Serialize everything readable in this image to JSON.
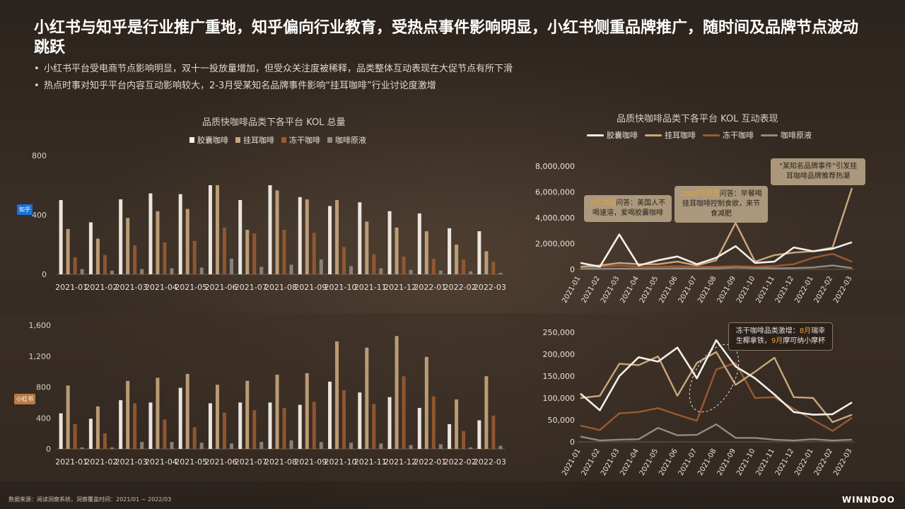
{
  "title": "小红书与知乎是行业推广重地，知乎偏向行业教育，受热点事件影响明显，小红书侧重品牌推广，随时间及品牌节点波动跳跃",
  "bullets": [
    "小红书平台受电商节点影响明显，双十一投放量增加，但受众关注度被稀释，品类整体互动表现在大促节点有所下滑",
    "热点时事对知乎平台内容互动影响较大，2-3月受某知名品牌事件影响“挂耳咖啡”行业讨论度激增"
  ],
  "bar_title": "品质快咖啡品类下各平台 KOL 总量",
  "line_title": "品质快咖啡品类下各平台 KOL 互动表现",
  "legend": [
    "胶囊咖啡",
    "挂耳咖啡",
    "冻干咖啡",
    "咖啡原液"
  ],
  "platforms": {
    "zhihu": "知乎",
    "xhs": "小红书"
  },
  "callouts": {
    "c1": "2亿浏览问答：美国人不喝速溶，爱喝胶囊咖啡",
    "c1_hl": "2亿浏览",
    "c2_hl": "2600万浏览",
    "c2_rest": "问答：早餐喝挂耳咖啡控制食欲，来节食减肥",
    "c3": "“某知名品牌事件”引发挂耳咖啡品牌推荐热潮",
    "c4_a": "冻干咖啡品类激增：",
    "c4_b": "8月",
    "c4_c": "瑞幸生椰拿铁，",
    "c4_d": "9月",
    "c4_e": "摩可纳小摩杯"
  },
  "footer": "数据来源：阅读洞察系统，洞察覆盖时间：2021/01 ~ 2022/03",
  "logo": "WINNDOO",
  "colors": {
    "capsule": "#f4efe8",
    "drip": "#c9a77e",
    "freeze": "#9a5a30",
    "liquid": "#8f8a85",
    "zhihu_badge": "#1a73d9",
    "xhs_badge": "#b97a45"
  },
  "chart_data": [
    {
      "type": "bar",
      "title": "品质快咖啡品类下各平台 KOL 总量",
      "platform": "知乎",
      "categories": [
        "2021-01",
        "2021-02",
        "2021-03",
        "2021-04",
        "2021-05",
        "2021-06",
        "2021-07",
        "2021-08",
        "2021-09",
        "2021-10",
        "2021-11",
        "2021-12",
        "2022-01",
        "2022-02",
        "2022-03"
      ],
      "ylim": [
        0,
        800
      ],
      "yticks": [
        0,
        400,
        800
      ],
      "series": [
        {
          "name": "胶囊咖啡",
          "values": [
            500,
            350,
            505,
            545,
            540,
            600,
            500,
            600,
            520,
            460,
            485,
            425,
            410,
            310,
            290
          ]
        },
        {
          "name": "挂耳咖啡",
          "values": [
            305,
            240,
            380,
            425,
            440,
            600,
            300,
            565,
            505,
            500,
            355,
            315,
            290,
            200,
            155
          ]
        },
        {
          "name": "冻干咖啡",
          "values": [
            115,
            130,
            195,
            215,
            225,
            315,
            275,
            300,
            280,
            185,
            135,
            120,
            105,
            100,
            85
          ]
        },
        {
          "name": "咖啡原液",
          "values": [
            35,
            25,
            35,
            40,
            45,
            105,
            50,
            65,
            100,
            55,
            40,
            30,
            25,
            20,
            10
          ]
        }
      ]
    },
    {
      "type": "line",
      "title": "品质快咖啡品类下各平台 KOL 互动表现",
      "platform": "知乎",
      "x": [
        "2021-01",
        "2021-02",
        "2021-03",
        "2021-04",
        "2021-05",
        "2021-06",
        "2021-07",
        "2021-08",
        "2021-09",
        "2021-10",
        "2021-11",
        "2021-12",
        "2022-01",
        "2022-02",
        "2022-03"
      ],
      "ylim": [
        0,
        8000000
      ],
      "yticks": [
        0,
        2000000,
        4000000,
        6000000,
        8000000
      ],
      "ytick_labels": [
        "0",
        "2,000,000",
        "4,000,000",
        "6,000,000",
        "8,000,000"
      ],
      "series": [
        {
          "name": "胶囊咖啡",
          "values": [
            500000,
            200000,
            2700000,
            300000,
            700000,
            1000000,
            400000,
            900000,
            1800000,
            500000,
            600000,
            1700000,
            1400000,
            1600000,
            2100000
          ]
        },
        {
          "name": "挂耳咖啡",
          "values": [
            200000,
            300000,
            500000,
            400000,
            400000,
            600000,
            300000,
            700000,
            3600000,
            600000,
            1100000,
            1300000,
            1400000,
            1700000,
            6300000
          ]
        },
        {
          "name": "冻干咖啡",
          "values": [
            150000,
            200000,
            300000,
            200000,
            200000,
            250000,
            200000,
            200000,
            250000,
            200000,
            250000,
            400000,
            900000,
            1200000,
            600000
          ]
        },
        {
          "name": "咖啡原液",
          "values": [
            50000,
            40000,
            60000,
            50000,
            60000,
            80000,
            60000,
            80000,
            150000,
            100000,
            80000,
            100000,
            150000,
            300000,
            100000
          ]
        }
      ]
    },
    {
      "type": "bar",
      "platform": "小红书",
      "categories": [
        "2021-01",
        "2021-02",
        "2021-03",
        "2021-04",
        "2021-05",
        "2021-06",
        "2021-07",
        "2021-08",
        "2021-09",
        "2021-10",
        "2021-11",
        "2021-12",
        "2022-01",
        "2022-02",
        "2022-03"
      ],
      "ylim": [
        0,
        1600
      ],
      "yticks": [
        0,
        400,
        800,
        1200,
        1600
      ],
      "ytick_labels": [
        "0",
        "400",
        "800",
        "1,200",
        "1,600"
      ],
      "series": [
        {
          "name": "胶囊咖啡",
          "values": [
            460,
            390,
            630,
            600,
            790,
            590,
            600,
            600,
            570,
            870,
            730,
            670,
            530,
            320,
            370
          ]
        },
        {
          "name": "挂耳咖啡",
          "values": [
            820,
            550,
            880,
            920,
            970,
            830,
            880,
            960,
            980,
            1390,
            1310,
            1460,
            1190,
            640,
            940
          ]
        },
        {
          "name": "冻干咖啡",
          "values": [
            320,
            200,
            590,
            380,
            280,
            470,
            500,
            530,
            610,
            760,
            580,
            940,
            680,
            230,
            430
          ]
        },
        {
          "name": "咖啡原液",
          "values": [
            20,
            20,
            90,
            90,
            80,
            70,
            90,
            110,
            90,
            80,
            70,
            50,
            60,
            20,
            40
          ]
        }
      ]
    },
    {
      "type": "line",
      "platform": "小红书",
      "x": [
        "2021-01",
        "2021-02",
        "2021-03",
        "2021-04",
        "2021-05",
        "2021-06",
        "2021-07",
        "2021-08",
        "2021-09",
        "2021-10",
        "2021-11",
        "2021-12",
        "2022-01",
        "2022-02",
        "2022-03"
      ],
      "ylim": [
        0,
        250000
      ],
      "yticks": [
        0,
        50000,
        100000,
        150000,
        200000,
        250000
      ],
      "ytick_labels": [
        "0",
        "50,000",
        "100,000",
        "150,000",
        "200,000",
        "250,000"
      ],
      "series": [
        {
          "name": "胶囊咖啡",
          "values": [
            110000,
            72000,
            150000,
            193000,
            183000,
            215000,
            145000,
            232000,
            172000,
            145000,
            108000,
            68000,
            62000,
            63000,
            90000
          ]
        },
        {
          "name": "挂耳咖啡",
          "values": [
            100000,
            105000,
            178000,
            175000,
            195000,
            105000,
            180000,
            205000,
            130000,
            160000,
            192000,
            102000,
            100000,
            45000,
            62000
          ]
        },
        {
          "name": "冻干咖啡",
          "values": [
            37000,
            27000,
            65000,
            68000,
            77000,
            62000,
            48000,
            165000,
            180000,
            100000,
            102000,
            75000,
            50000,
            25000,
            55000
          ]
        },
        {
          "name": "咖啡原液",
          "values": [
            12000,
            3000,
            5000,
            6000,
            32000,
            15000,
            16000,
            40000,
            9000,
            9000,
            5000,
            3000,
            6000,
            3000,
            5000
          ]
        }
      ]
    }
  ]
}
